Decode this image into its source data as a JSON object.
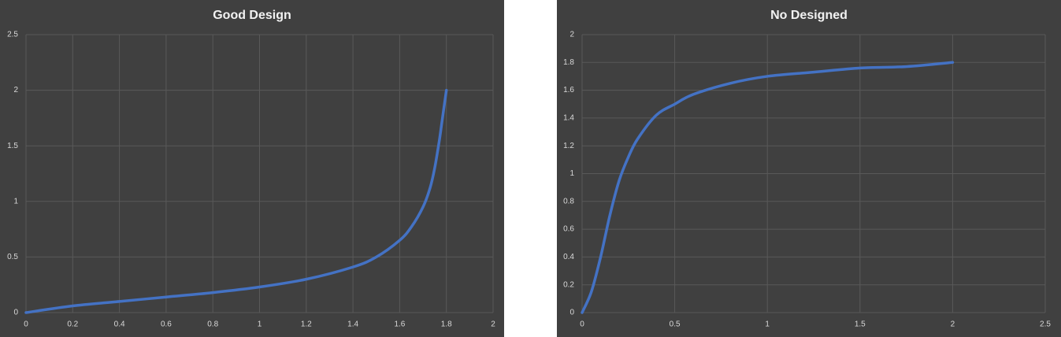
{
  "chart_data": [
    {
      "type": "line",
      "title": "Good Design",
      "x": [
        0,
        0.2,
        0.4,
        0.6,
        0.8,
        1.0,
        1.2,
        1.4,
        1.5,
        1.6,
        1.65,
        1.7,
        1.73,
        1.75,
        1.77,
        1.78,
        1.79,
        1.8
      ],
      "values": [
        0,
        0.06,
        0.1,
        0.14,
        0.18,
        0.23,
        0.3,
        0.41,
        0.5,
        0.65,
        0.77,
        0.95,
        1.12,
        1.3,
        1.55,
        1.7,
        1.85,
        2
      ],
      "color": "#4472c4",
      "xlim": [
        0,
        2
      ],
      "xticks": [
        0,
        0.2,
        0.4,
        0.6,
        0.8,
        1,
        1.2,
        1.4,
        1.6,
        1.8,
        2
      ],
      "ylim": [
        0,
        2.5
      ],
      "yticks": [
        0,
        0.5,
        1,
        1.5,
        2,
        2.5
      ],
      "grid": true
    },
    {
      "type": "line",
      "title": "No Designed",
      "x": [
        0,
        0.05,
        0.1,
        0.15,
        0.2,
        0.25,
        0.3,
        0.4,
        0.5,
        0.6,
        0.8,
        1,
        1.25,
        1.5,
        1.75,
        2
      ],
      "values": [
        0,
        0.15,
        0.4,
        0.7,
        0.95,
        1.12,
        1.25,
        1.42,
        1.5,
        1.57,
        1.65,
        1.7,
        1.73,
        1.76,
        1.77,
        1.8
      ],
      "color": "#4472c4",
      "xlim": [
        0,
        2.5
      ],
      "xticks": [
        0,
        0.5,
        1,
        1.5,
        2,
        2.5
      ],
      "ylim": [
        0,
        2
      ],
      "yticks": [
        0,
        0.2,
        0.4,
        0.6,
        0.8,
        1,
        1.2,
        1.4,
        1.6,
        1.8,
        2
      ],
      "grid": true
    }
  ]
}
